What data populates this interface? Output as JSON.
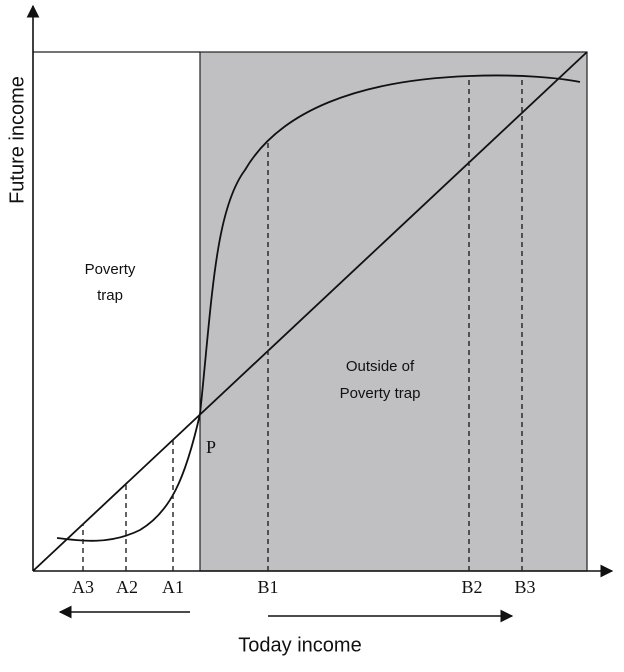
{
  "axes": {
    "x_label": "Today income",
    "y_label": "Future income"
  },
  "regions": {
    "poverty_trap": [
      "Poverty",
      "trap"
    ],
    "outside": [
      "Outside of",
      "Poverty trap"
    ]
  },
  "point_label": "P",
  "left_markers": [
    "A3",
    "A2",
    "A1"
  ],
  "right_markers": [
    "B1",
    "B2",
    "B3"
  ]
}
